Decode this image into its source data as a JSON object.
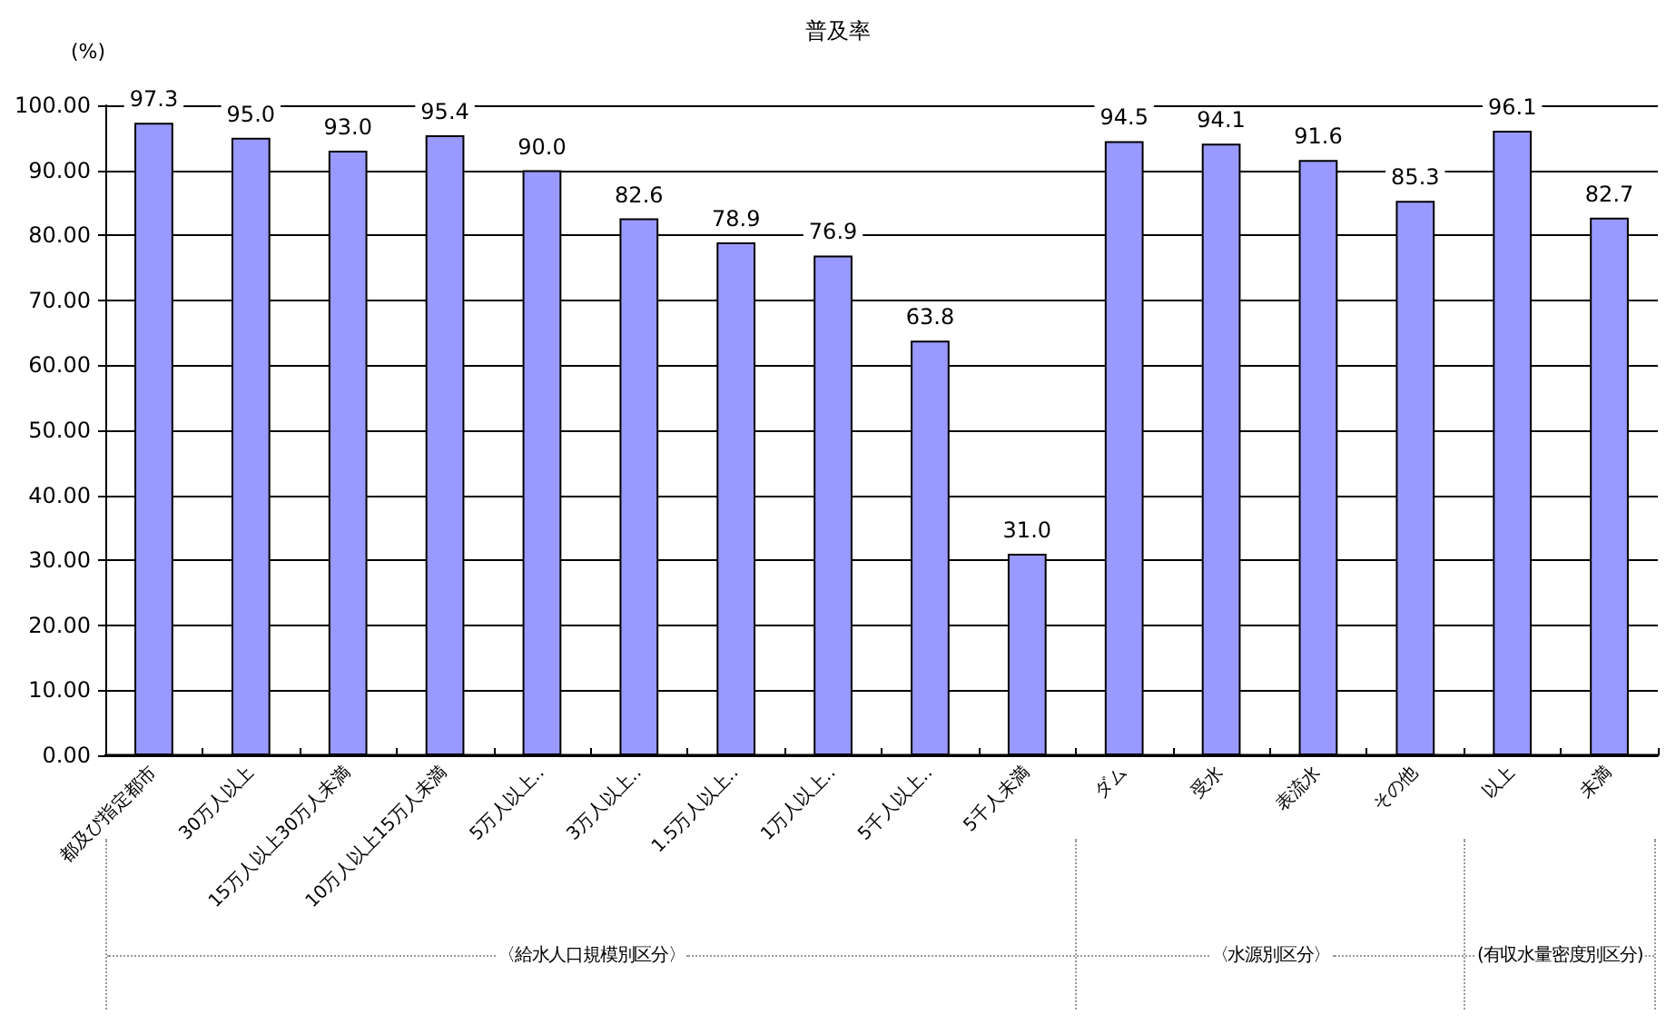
{
  "chart_data": {
    "type": "bar",
    "title": "普及率",
    "ylabel": "(%)",
    "categories": [
      "都及び指定都市",
      "30万人以上",
      "15万人以上30万人未満",
      "10万人以上15万人未満",
      "5万人以上‥",
      "3万人以上‥",
      "1.5万人以上‥",
      "1万人以上‥",
      "5千人以上‥",
      "5千人未満",
      "ダム",
      "受水",
      "表流水",
      "その他",
      "以上",
      "未満"
    ],
    "values": [
      97.3,
      95.0,
      93.0,
      95.4,
      90.0,
      82.6,
      78.9,
      76.9,
      63.8,
      31.0,
      94.5,
      94.1,
      91.6,
      85.3,
      96.1,
      82.7
    ],
    "value_labels": [
      "97.3",
      "95.0",
      "93.0",
      "95.4",
      "90.0",
      "82.6",
      "78.9",
      "76.9",
      "63.8",
      "31.0",
      "94.5",
      "94.1",
      "91.6",
      "85.3",
      "96.1",
      "82.7"
    ],
    "color": "#9999ff",
    "ylim": [
      0,
      100
    ],
    "yticks": [
      {
        "value": 0,
        "label": "0.00"
      },
      {
        "value": 10,
        "label": "10.00"
      },
      {
        "value": 20,
        "label": "20.00"
      },
      {
        "value": 30,
        "label": "30.00"
      },
      {
        "value": 40,
        "label": "40.00"
      },
      {
        "value": 50,
        "label": "50.00"
      },
      {
        "value": 60,
        "label": "60.00"
      },
      {
        "value": 70,
        "label": "70.00"
      },
      {
        "value": 80,
        "label": "80.00"
      },
      {
        "value": 90,
        "label": "90.00"
      },
      {
        "value": 100,
        "label": "100.00"
      }
    ],
    "grid": "y",
    "annotations": [
      "〈給水人口規模別区分〉",
      "〈水源別区分〉",
      "(有収水量密度別区分)"
    ]
  }
}
